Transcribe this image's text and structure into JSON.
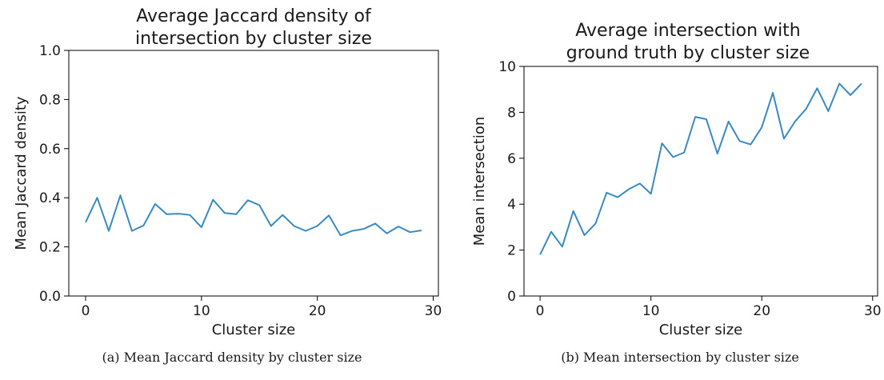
{
  "chart_data": [
    {
      "type": "line",
      "title": [
        "Average Jaccard density of",
        "intersection by cluster size"
      ],
      "xlabel": "Cluster size",
      "ylabel": "Mean Jaccard density",
      "xlim": [
        -1.45,
        30.45
      ],
      "ylim": [
        0,
        1
      ],
      "xticks": [
        0,
        10,
        20,
        30
      ],
      "yticks": [
        0.0,
        0.2,
        0.4,
        0.6,
        0.8,
        1.0
      ],
      "ytick_labels": [
        "0.0",
        "0.2",
        "0.4",
        "0.6",
        "0.8",
        "1.0"
      ],
      "grid": false,
      "color": "#3a8ac2",
      "x": [
        0,
        1,
        2,
        3,
        4,
        5,
        6,
        7,
        8,
        9,
        10,
        11,
        12,
        13,
        14,
        15,
        16,
        17,
        18,
        19,
        20,
        21,
        22,
        23,
        24,
        25,
        26,
        27,
        28,
        29
      ],
      "y": [
        0.3,
        0.4,
        0.265,
        0.41,
        0.265,
        0.287,
        0.375,
        0.333,
        0.335,
        0.33,
        0.28,
        0.392,
        0.338,
        0.333,
        0.39,
        0.37,
        0.285,
        0.33,
        0.285,
        0.265,
        0.285,
        0.328,
        0.247,
        0.265,
        0.273,
        0.295,
        0.255,
        0.283,
        0.26,
        0.267
      ],
      "caption": "(a) Mean Jaccard density by cluster size"
    },
    {
      "type": "line",
      "title": [
        "Average intersection with",
        "ground truth by cluster size"
      ],
      "xlabel": "Cluster size",
      "ylabel": "Mean intersection",
      "xlim": [
        -1.45,
        30.45
      ],
      "ylim": [
        0,
        10
      ],
      "xticks": [
        0,
        10,
        20,
        30
      ],
      "yticks": [
        0,
        2,
        4,
        6,
        8,
        10
      ],
      "ytick_labels": [
        "0",
        "2",
        "4",
        "6",
        "8",
        "10"
      ],
      "grid": false,
      "color": "#3a8ac2",
      "x": [
        0,
        1,
        2,
        3,
        4,
        5,
        6,
        7,
        8,
        9,
        10,
        11,
        12,
        13,
        14,
        15,
        16,
        17,
        18,
        19,
        20,
        21,
        22,
        23,
        24,
        25,
        26,
        27,
        28,
        29
      ],
      "y": [
        1.8,
        2.8,
        2.15,
        3.7,
        2.65,
        3.15,
        4.5,
        4.3,
        4.65,
        4.9,
        4.45,
        6.65,
        6.05,
        6.25,
        7.8,
        7.7,
        6.2,
        7.6,
        6.75,
        6.6,
        7.35,
        8.85,
        6.85,
        7.6,
        8.15,
        9.05,
        8.05,
        9.25,
        8.75,
        9.25
      ],
      "caption": "(b) Mean intersection by cluster size"
    }
  ]
}
